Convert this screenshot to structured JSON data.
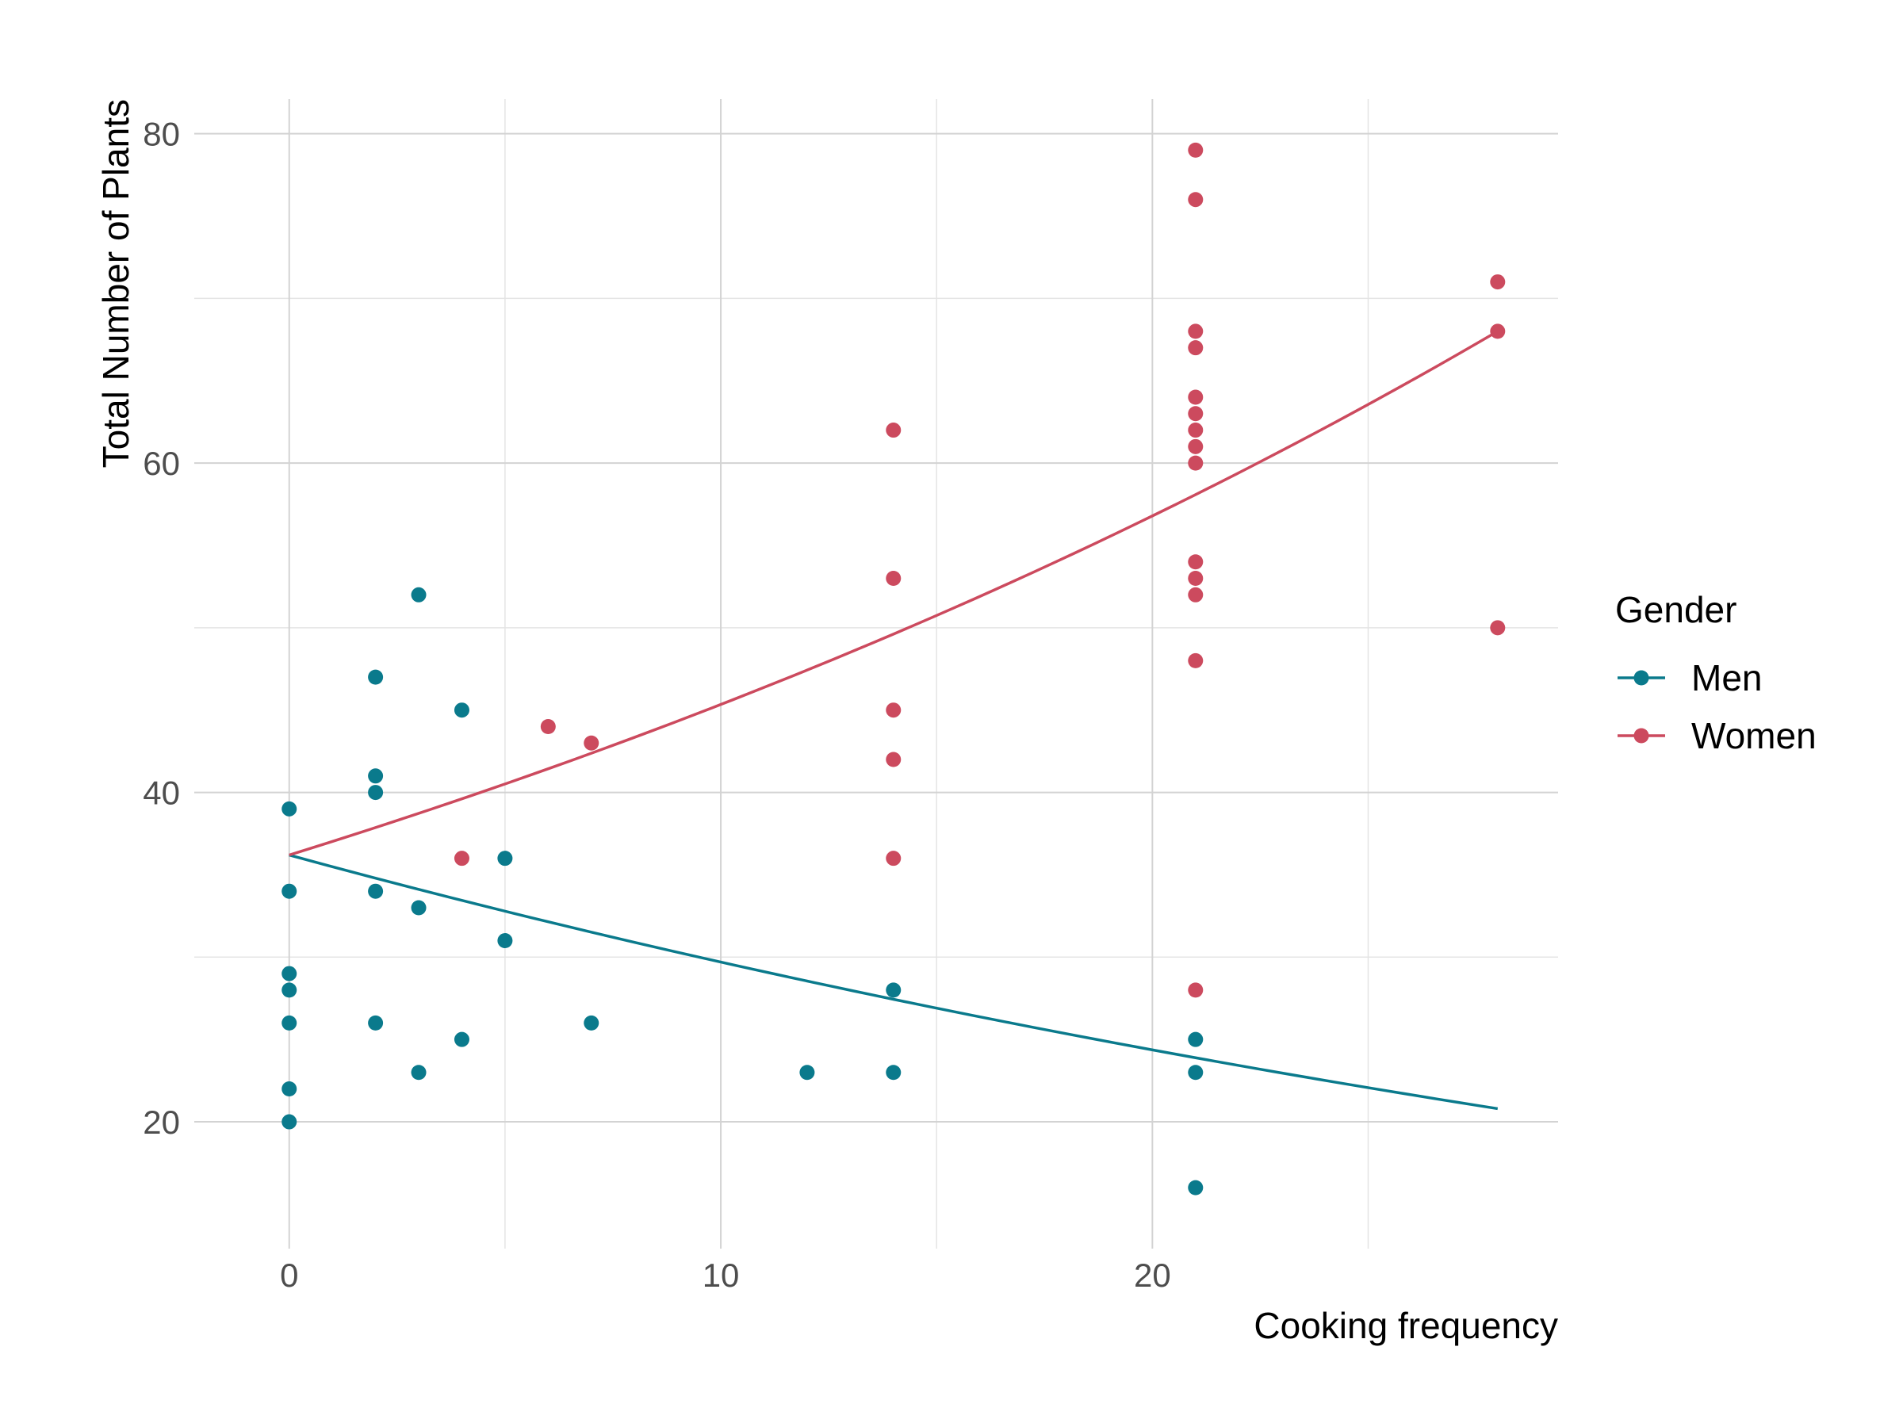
{
  "chart_data": {
    "type": "scatter",
    "xlabel": "Cooking frequency",
    "ylabel": "Total Number of Plants",
    "xlim": [
      -2.2,
      29.4
    ],
    "ylim": [
      12.3,
      82.1
    ],
    "x_ticks": [
      0,
      10,
      20
    ],
    "x_tick_labels": [
      "0",
      "10",
      "20"
    ],
    "y_ticks": [
      20,
      40,
      60,
      80
    ],
    "y_tick_labels": [
      "20",
      "40",
      "60",
      "80"
    ],
    "x_minor_ticks": [
      5,
      15,
      25
    ],
    "y_minor_ticks": [
      30,
      50,
      70
    ],
    "grid": true,
    "legend": {
      "title": "Gender",
      "position": "right"
    },
    "series": [
      {
        "name": "Men",
        "color": "#0a7a8c",
        "points": [
          [
            0,
            39
          ],
          [
            0,
            34
          ],
          [
            0,
            29
          ],
          [
            0,
            28
          ],
          [
            0,
            26
          ],
          [
            0,
            22
          ],
          [
            0,
            20
          ],
          [
            2,
            47
          ],
          [
            2,
            41
          ],
          [
            2,
            40
          ],
          [
            2,
            34
          ],
          [
            2,
            26
          ],
          [
            3,
            52
          ],
          [
            3,
            33
          ],
          [
            3,
            23
          ],
          [
            4,
            45
          ],
          [
            4,
            25
          ],
          [
            5,
            36
          ],
          [
            5,
            31
          ],
          [
            7,
            26
          ],
          [
            12,
            23
          ],
          [
            14,
            28
          ],
          [
            14,
            23
          ],
          [
            21,
            25
          ],
          [
            21,
            23
          ],
          [
            21,
            16
          ]
        ],
        "trend": {
          "x_start": 0,
          "x_end": 28,
          "y_start": 36.2,
          "y_end": 20.8
        }
      },
      {
        "name": "Women",
        "color": "#cc4a5e",
        "points": [
          [
            4,
            36
          ],
          [
            6,
            44
          ],
          [
            7,
            43
          ],
          [
            14,
            62
          ],
          [
            14,
            53
          ],
          [
            14,
            45
          ],
          [
            14,
            42
          ],
          [
            14,
            36
          ],
          [
            21,
            79
          ],
          [
            21,
            76
          ],
          [
            21,
            68
          ],
          [
            21,
            67
          ],
          [
            21,
            64
          ],
          [
            21,
            63
          ],
          [
            21,
            62
          ],
          [
            21,
            61
          ],
          [
            21,
            60
          ],
          [
            21,
            54
          ],
          [
            21,
            53
          ],
          [
            21,
            52
          ],
          [
            21,
            48
          ],
          [
            21,
            28
          ],
          [
            28,
            71
          ],
          [
            28,
            68
          ],
          [
            28,
            50
          ]
        ],
        "trend": {
          "x_start": 0,
          "x_end": 28,
          "y_start": 36.2,
          "y_end": 68
        }
      }
    ]
  }
}
